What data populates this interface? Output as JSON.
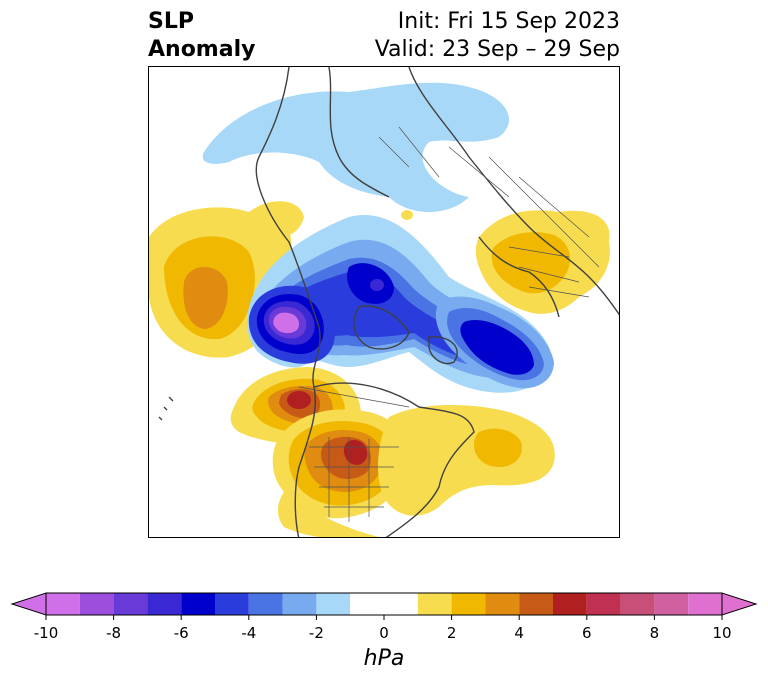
{
  "title": {
    "left_line1": "SLP",
    "left_line2": "Anomaly",
    "right_line1": "Init: Fri 15 Sep 2023",
    "right_line2": "Valid: 23 Sep – 29 Sep"
  },
  "colorbar": {
    "levels": [
      -10,
      -9,
      -8,
      -7,
      -6,
      -5,
      -4,
      -3,
      -2,
      -1,
      1,
      2,
      3,
      4,
      5,
      6,
      7,
      8,
      9,
      10
    ],
    "colors": [
      "#d070e8",
      "#9b4fdc",
      "#6a3ad8",
      "#3a28d4",
      "#0000cc",
      "#2a3cdc",
      "#4a74e4",
      "#78aaf0",
      "#a8d8f8",
      "#ffffff",
      "#f8dc50",
      "#f0b800",
      "#e08c10",
      "#c85a18",
      "#b02020",
      "#c03050",
      "#c85078",
      "#d060a0",
      "#e070d0"
    ],
    "under_color": "#d070e8",
    "over_color": "#e070d0",
    "ticks": [
      "-10",
      "-8",
      "-6",
      "-4",
      "-2",
      "0",
      "2",
      "4",
      "6",
      "8",
      "10"
    ],
    "units": "hPa"
  },
  "map": {
    "features": [
      {
        "name": "anomaly-high-pacific",
        "color": "#e08c10"
      },
      {
        "name": "anomaly-low-gulf-of-alaska",
        "color": "#d070e8"
      },
      {
        "name": "anomaly-low-arctic",
        "color": "#0000cc"
      },
      {
        "name": "anomaly-low-barents",
        "color": "#0000cc"
      },
      {
        "name": "anomaly-high-western-canada",
        "color": "#b02020"
      },
      {
        "name": "anomaly-high-central-us",
        "color": "#c85a18"
      },
      {
        "name": "anomaly-high-north-atlantic",
        "color": "#f0b800"
      },
      {
        "name": "anomaly-high-east-asia",
        "color": "#f0b800"
      },
      {
        "name": "anomaly-low-siberia",
        "color": "#a8d8f8"
      }
    ]
  }
}
